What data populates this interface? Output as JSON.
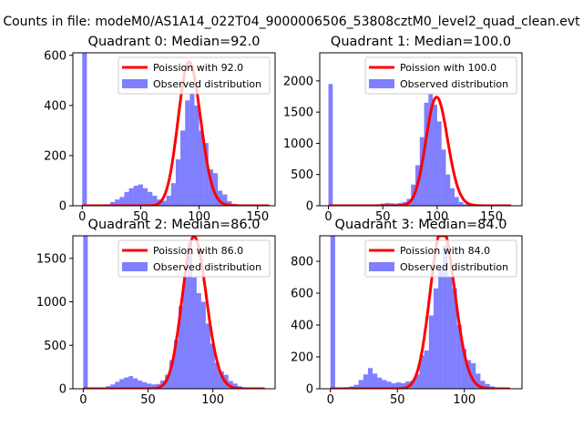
{
  "figure": {
    "suptitle": "Counts in file: modeM0/AS1A14_022T04_9000006506_53808cztM0_level2_quad_clean.evt"
  },
  "colors": {
    "hist": "#0000ff",
    "line": "#ff0000",
    "axis": "#000000",
    "background": "#ffffff"
  },
  "chart_data": [
    {
      "type": "bar",
      "title": "Quadrant 0: Median=92.0",
      "xlim": [
        -8,
        165
      ],
      "ylim": [
        0,
        610
      ],
      "xticks": [
        0,
        50,
        100,
        150
      ],
      "yticks": [
        0,
        200,
        400,
        600
      ],
      "legend": [
        "Poission with 92.0",
        "Observed distribution"
      ],
      "legend_position": "top-right",
      "bin_width": 4,
      "series": [
        {
          "name": "Observed distribution",
          "type": "histogram",
          "bins": [
            0,
            4,
            8,
            12,
            16,
            20,
            24,
            28,
            32,
            36,
            40,
            44,
            48,
            52,
            56,
            60,
            64,
            68,
            72,
            76,
            80,
            84,
            88,
            92,
            96,
            100,
            104,
            108,
            112,
            116,
            120,
            124,
            128,
            132,
            136,
            140,
            144,
            148,
            152
          ],
          "counts": [
            620,
            2,
            3,
            3,
            4,
            6,
            15,
            25,
            35,
            55,
            70,
            80,
            85,
            70,
            55,
            40,
            25,
            20,
            40,
            90,
            185,
            300,
            420,
            450,
            400,
            300,
            250,
            145,
            130,
            60,
            45,
            18,
            8,
            5,
            3,
            2,
            1,
            1,
            1
          ]
        },
        {
          "name": "Poission with 92.0",
          "type": "line",
          "lambda": 92.0,
          "x_range": [
            0,
            160
          ]
        }
      ]
    },
    {
      "type": "bar",
      "title": "Quadrant 1: Median=100.0",
      "xlim": [
        -8,
        178
      ],
      "ylim": [
        0,
        2450
      ],
      "xticks": [
        0,
        50,
        100,
        150
      ],
      "yticks": [
        0,
        500,
        1000,
        1500,
        2000
      ],
      "legend": [
        "Poission with 100.0",
        "Observed distribution"
      ],
      "legend_position": "top-right",
      "bin_width": 4,
      "series": [
        {
          "name": "Observed distribution",
          "type": "histogram",
          "bins": [
            0,
            4,
            8,
            12,
            16,
            20,
            24,
            28,
            32,
            36,
            40,
            44,
            48,
            52,
            56,
            60,
            64,
            68,
            72,
            76,
            80,
            84,
            88,
            92,
            96,
            100,
            104,
            108,
            112,
            116,
            120,
            124,
            128,
            132,
            136,
            140,
            144,
            148,
            152,
            156,
            160
          ],
          "counts": [
            1950,
            2,
            2,
            3,
            3,
            4,
            5,
            6,
            8,
            10,
            15,
            25,
            35,
            45,
            40,
            35,
            45,
            60,
            110,
            340,
            650,
            1100,
            1650,
            1800,
            1620,
            1350,
            900,
            500,
            280,
            140,
            60,
            25,
            12,
            6,
            4,
            3,
            2,
            1,
            1,
            1,
            1
          ]
        },
        {
          "name": "Poission with 100.0",
          "type": "line",
          "lambda": 100.0,
          "x_range": [
            0,
            168
          ]
        }
      ]
    },
    {
      "type": "bar",
      "title": "Quadrant 2: Median=86.0",
      "xlim": [
        -8,
        148
      ],
      "ylim": [
        0,
        1760
      ],
      "xticks": [
        0,
        50,
        100
      ],
      "yticks": [
        0,
        500,
        1000,
        1500
      ],
      "legend": [
        "Poission with 86.0",
        "Observed distribution"
      ],
      "legend_position": "top-right",
      "bin_width": 3.5,
      "series": [
        {
          "name": "Observed distribution",
          "type": "histogram",
          "bins": [
            0,
            3.5,
            7,
            10.5,
            14,
            17.5,
            21,
            24.5,
            28,
            31.5,
            35,
            38.5,
            42,
            45.5,
            49,
            52.5,
            56,
            59.5,
            63,
            66.5,
            70,
            73.5,
            77,
            80.5,
            84,
            87.5,
            91,
            94.5,
            98,
            101.5,
            105,
            108.5,
            112,
            115.5,
            119,
            122.5,
            126,
            129.5,
            133
          ],
          "counts": [
            1760,
            3,
            5,
            8,
            15,
            30,
            50,
            80,
            110,
            130,
            145,
            120,
            95,
            75,
            60,
            50,
            55,
            95,
            160,
            330,
            560,
            950,
            1300,
            1680,
            1280,
            1100,
            1000,
            750,
            520,
            300,
            200,
            160,
            90,
            60,
            30,
            15,
            8,
            4,
            2
          ]
        },
        {
          "name": "Poission with 86.0",
          "type": "line",
          "lambda": 86.0,
          "x_range": [
            0,
            140
          ]
        }
      ]
    },
    {
      "type": "bar",
      "title": "Quadrant 3: Median=84.0",
      "xlim": [
        -8,
        143
      ],
      "ylim": [
        0,
        960
      ],
      "xticks": [
        0,
        50,
        100
      ],
      "yticks": [
        0,
        200,
        400,
        600,
        800
      ],
      "legend": [
        "Poission with 84.0",
        "Observed distribution"
      ],
      "legend_position": "top-right",
      "bin_width": 3.5,
      "series": [
        {
          "name": "Observed distribution",
          "type": "histogram",
          "bins": [
            0,
            3.5,
            7,
            10.5,
            14,
            17.5,
            21,
            24.5,
            28,
            31.5,
            35,
            38.5,
            42,
            45.5,
            49,
            52.5,
            56,
            59.5,
            63,
            66.5,
            70,
            73.5,
            77,
            80.5,
            84,
            87.5,
            91,
            94.5,
            98,
            101.5,
            105,
            108.5,
            112,
            115.5,
            119,
            122.5,
            126,
            129.5,
            133
          ],
          "counts": [
            960,
            5,
            8,
            10,
            15,
            25,
            55,
            90,
            130,
            95,
            70,
            55,
            45,
            35,
            40,
            35,
            45,
            50,
            90,
            210,
            240,
            460,
            630,
            760,
            900,
            700,
            630,
            400,
            250,
            180,
            160,
            95,
            50,
            30,
            15,
            8,
            4,
            2,
            1
          ]
        },
        {
          "name": "Poission with 84.0",
          "type": "line",
          "lambda": 84.0,
          "x_range": [
            0,
            134
          ]
        }
      ]
    }
  ]
}
